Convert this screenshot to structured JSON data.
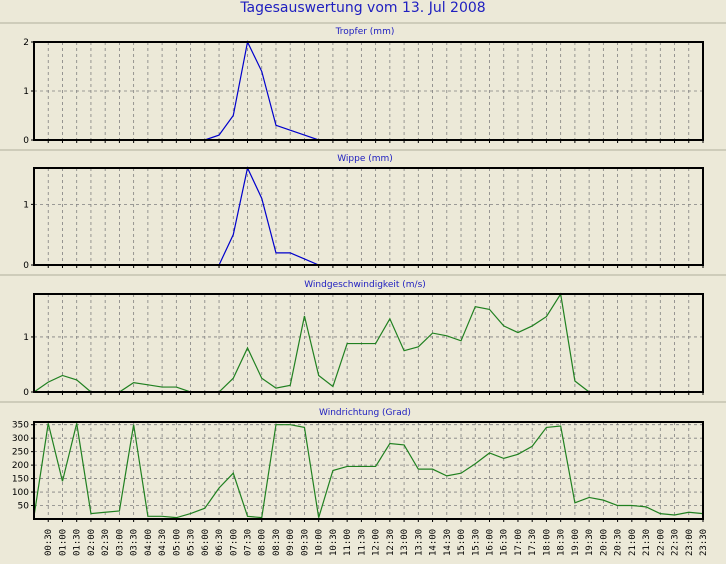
{
  "title": "Tagesauswertung vom 13. Jul 2008",
  "colors": {
    "background": "#ece9d8",
    "title": "#2020c0",
    "rain": "#0000cc",
    "wind": "#208020",
    "grid": "#808080"
  },
  "chart_data": [
    {
      "type": "line",
      "title": "Tropfer (mm)",
      "ylim": [
        0,
        2
      ],
      "yticks": [
        0,
        1,
        2
      ],
      "grid": true,
      "color": "#0000cc",
      "values": [
        0,
        0,
        0,
        0,
        0,
        0,
        0,
        0,
        0,
        0,
        0,
        0,
        0,
        0.1,
        0.5,
        2.0,
        1.4,
        0.3,
        0.2,
        0.1,
        0,
        0,
        0,
        0,
        0,
        0,
        0,
        0,
        0,
        0,
        0,
        0,
        0,
        0,
        0,
        0,
        0,
        0,
        0,
        0,
        0,
        0,
        0,
        0,
        0,
        0,
        0,
        0
      ]
    },
    {
      "type": "line",
      "title": "Wippe (mm)",
      "ylim": [
        0,
        1.6
      ],
      "yticks": [
        0,
        1
      ],
      "grid": true,
      "color": "#0000cc",
      "values": [
        0,
        0,
        0,
        0,
        0,
        0,
        0,
        0,
        0,
        0,
        0,
        0,
        0,
        0,
        0.5,
        1.6,
        1.1,
        0.2,
        0.2,
        0.1,
        0,
        0,
        0,
        0,
        0,
        0,
        0,
        0,
        0,
        0,
        0,
        0,
        0,
        0,
        0,
        0,
        0,
        0,
        0,
        0,
        0,
        0,
        0,
        0,
        0,
        0,
        0,
        0
      ]
    },
    {
      "type": "line",
      "title": "Windgeschwindigkeit (m/s)",
      "ylim": [
        0,
        1.78
      ],
      "yticks": [
        0,
        1
      ],
      "grid": true,
      "color": "#208020",
      "values": [
        0,
        0.18,
        0.3,
        0.22,
        0,
        0,
        0,
        0.17,
        0.13,
        0.09,
        0.09,
        0,
        0,
        0,
        0.25,
        0.8,
        0.25,
        0.07,
        0.12,
        1.38,
        0.3,
        0.1,
        0.88,
        0.88,
        0.88,
        1.33,
        0.75,
        0.82,
        1.07,
        1.02,
        0.93,
        1.55,
        1.5,
        1.2,
        1.08,
        1.2,
        1.37,
        1.78,
        0.2,
        0,
        0,
        0,
        0,
        0,
        0,
        0,
        0,
        0
      ]
    },
    {
      "type": "line",
      "title": "Windrichtung (Grad)",
      "ylim": [
        0,
        360
      ],
      "yticks": [
        50,
        100,
        150,
        200,
        250,
        300,
        350
      ],
      "grid": true,
      "color": "#208020",
      "values": [
        10,
        355,
        140,
        355,
        20,
        25,
        30,
        350,
        10,
        10,
        5,
        20,
        40,
        115,
        170,
        10,
        5,
        350,
        350,
        340,
        5,
        180,
        195,
        195,
        195,
        280,
        275,
        185,
        185,
        160,
        170,
        205,
        245,
        225,
        240,
        270,
        340,
        345,
        60,
        80,
        70,
        50,
        50,
        45,
        20,
        15,
        25,
        20
      ]
    }
  ],
  "x_labels": [
    "00:30",
    "01:00",
    "01:30",
    "02:00",
    "02:30",
    "03:00",
    "03:30",
    "04:00",
    "04:30",
    "05:00",
    "05:30",
    "06:00",
    "06:30",
    "07:00",
    "07:30",
    "08:00",
    "08:30",
    "09:00",
    "09:30",
    "10:00",
    "10:30",
    "11:00",
    "11:30",
    "12:00",
    "12:30",
    "13:00",
    "13:30",
    "14:00",
    "14:30",
    "15:00",
    "15:30",
    "16:00",
    "16:30",
    "17:00",
    "17:30",
    "18:00",
    "18:30",
    "19:00",
    "19:30",
    "20:00",
    "20:30",
    "21:00",
    "21:30",
    "22:00",
    "22:30",
    "23:00",
    "23:30"
  ]
}
